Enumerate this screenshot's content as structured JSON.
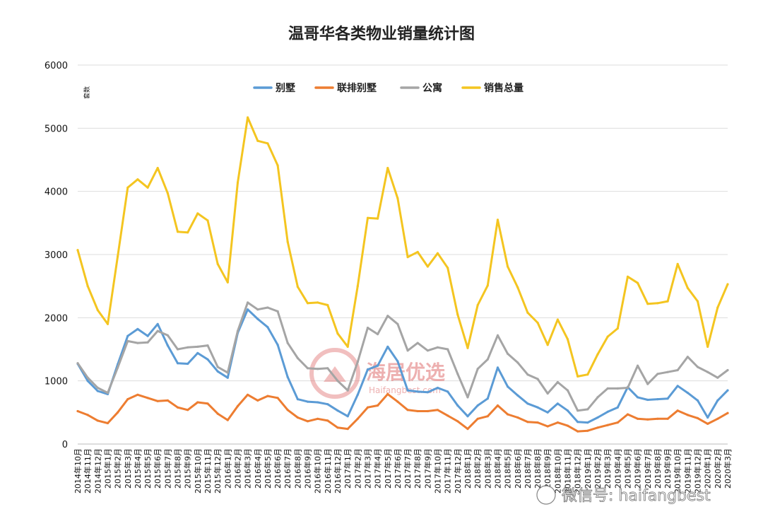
{
  "chart_data": {
    "type": "line",
    "title": "温哥华各类物业销量统计图",
    "ylabel": "套数",
    "xlabel": "",
    "ylim": [
      0,
      6000
    ],
    "y_ticks": [
      "0",
      "1000",
      "2000",
      "3000",
      "4000",
      "5000",
      "6000"
    ],
    "grid": "horizontal",
    "legend_position": "top-center",
    "categories": [
      "2014年10月",
      "2014年11月",
      "2014年12月",
      "2015年1月",
      "2015年2月",
      "2015年3月",
      "2015年4月",
      "2015年5月",
      "2015年6月",
      "2015年7月",
      "2015年8月",
      "2015年9月",
      "2015年10月",
      "2015年11月",
      "2015年12月",
      "2016年1月",
      "2016年2月",
      "2016年3月",
      "2016年4月",
      "2016年5月",
      "2016年6月",
      "2016年7月",
      "2016年8月",
      "2016年9月",
      "2016年10月",
      "2016年11月",
      "2016年12月",
      "2017年1月",
      "2017年2月",
      "2017年3月",
      "2017年4月",
      "2017年5月",
      "2017年6月",
      "2017年7月",
      "2017年8月",
      "2017年9月",
      "2017年10月",
      "2017年11月",
      "2017年12月",
      "2018年1月",
      "2018年2月",
      "2018年3月",
      "2018年4月",
      "2018年5月",
      "2018年6月",
      "2018年7月",
      "2018年8月",
      "2018年9月",
      "2018年10月",
      "2018年11月",
      "2018年12月",
      "2019年1月",
      "2019年2月",
      "2019年3月",
      "2019年4月",
      "2019年5月",
      "2019年6月",
      "2019年7月",
      "2019年8月",
      "2019年9月",
      "2019年10月",
      "2019年11月",
      "2019年12月",
      "2020年1月",
      "2020年2月",
      "2020年3月"
    ],
    "series": [
      {
        "name": "别墅",
        "color": "#5b9bd5",
        "values": [
          1270,
          1000,
          840,
          790,
          1260,
          1710,
          1820,
          1710,
          1900,
          1560,
          1280,
          1270,
          1440,
          1340,
          1150,
          1050,
          1760,
          2130,
          1980,
          1850,
          1570,
          1060,
          710,
          670,
          660,
          630,
          530,
          440,
          780,
          1180,
          1240,
          1540,
          1310,
          850,
          830,
          820,
          890,
          830,
          610,
          440,
          610,
          720,
          1210,
          910,
          770,
          640,
          580,
          500,
          640,
          530,
          350,
          340,
          420,
          510,
          580,
          900,
          740,
          700,
          710,
          720,
          920,
          810,
          690,
          420,
          690,
          850
        ]
      },
      {
        "name": "联排别墅",
        "color": "#ed7d31",
        "values": [
          520,
          460,
          370,
          330,
          500,
          710,
          780,
          730,
          680,
          690,
          580,
          540,
          660,
          640,
          480,
          380,
          600,
          780,
          690,
          760,
          730,
          540,
          420,
          360,
          400,
          370,
          260,
          240,
          400,
          580,
          610,
          790,
          670,
          540,
          520,
          520,
          540,
          450,
          360,
          240,
          400,
          440,
          610,
          470,
          420,
          350,
          340,
          280,
          340,
          290,
          200,
          210,
          260,
          300,
          340,
          470,
          400,
          390,
          400,
          400,
          530,
          460,
          410,
          320,
          400,
          490
        ]
      },
      {
        "name": "公寓",
        "color": "#a5a5a5",
        "values": [
          1280,
          1050,
          890,
          810,
          1210,
          1630,
          1600,
          1610,
          1790,
          1720,
          1500,
          1530,
          1540,
          1560,
          1220,
          1130,
          1790,
          2240,
          2130,
          2160,
          2100,
          1600,
          1360,
          1200,
          1190,
          1200,
          1000,
          850,
          1300,
          1840,
          1740,
          2030,
          1900,
          1480,
          1600,
          1480,
          1530,
          1500,
          1110,
          740,
          1190,
          1340,
          1720,
          1430,
          1290,
          1100,
          1030,
          800,
          980,
          850,
          530,
          550,
          740,
          880,
          880,
          890,
          1240,
          950,
          1110,
          1140,
          1170,
          1380,
          1220,
          1140,
          1050,
          1170
        ]
      },
      {
        "name": "销售总量",
        "color": "#f4c520",
        "values": [
          3070,
          2500,
          2120,
          1900,
          2970,
          4060,
          4190,
          4060,
          4370,
          3970,
          3360,
          3350,
          3650,
          3540,
          2850,
          2560,
          4140,
          5170,
          4800,
          4760,
          4410,
          3200,
          2490,
          2230,
          2240,
          2200,
          1750,
          1540,
          2500,
          3580,
          3570,
          4370,
          3890,
          2960,
          3040,
          2810,
          3020,
          2790,
          2050,
          1520,
          2200,
          2510,
          3550,
          2810,
          2480,
          2080,
          1920,
          1570,
          1970,
          1660,
          1070,
          1100,
          1420,
          1700,
          1830,
          2650,
          2550,
          2220,
          2230,
          2260,
          2850,
          2470,
          2260,
          1540,
          2160,
          2530
        ]
      }
    ]
  },
  "watermarks": {
    "logo_main": "海居优选",
    "logo_sub": "Haifangbest.com",
    "wechat": "微信号: haifangbest"
  }
}
